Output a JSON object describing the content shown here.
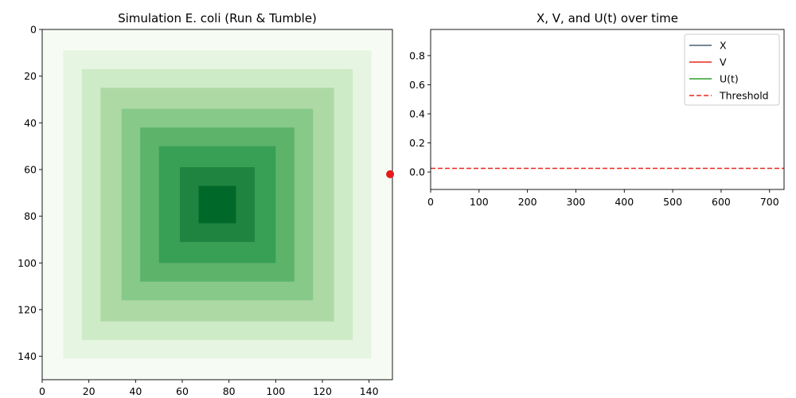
{
  "chart_data": [
    {
      "type": "heatmap",
      "title": "Simulation E. coli (Run & Tumble)",
      "xlim": [
        0,
        150
      ],
      "ylim": [
        150,
        0
      ],
      "x_ticks": [
        0,
        20,
        40,
        60,
        80,
        100,
        120,
        140
      ],
      "y_ticks": [
        0,
        20,
        40,
        60,
        80,
        100,
        120,
        140
      ],
      "colormap": "Greens",
      "grid": false,
      "field": {
        "center": [
          75,
          75
        ],
        "levels": [
          {
            "half_width": 75,
            "color": "#f6fcf4"
          },
          {
            "half_width": 66,
            "color": "#e6f5e1"
          },
          {
            "half_width": 58,
            "color": "#cdebc6"
          },
          {
            "half_width": 50,
            "color": "#add9a5"
          },
          {
            "half_width": 41,
            "color": "#87c988"
          },
          {
            "half_width": 33,
            "color": "#5db36a"
          },
          {
            "half_width": 25,
            "color": "#37a055"
          },
          {
            "half_width": 16,
            "color": "#1e8440"
          },
          {
            "half_width": 8,
            "color": "#00692a"
          }
        ]
      },
      "bacterium": {
        "x": 149,
        "y": 62,
        "color": "#e41a1c"
      }
    },
    {
      "type": "line",
      "title": "X, V, and U(t) over time",
      "xlim": [
        0,
        730
      ],
      "ylim": [
        -0.12,
        0.98
      ],
      "x_ticks": [
        0,
        100,
        200,
        300,
        400,
        500,
        600,
        700
      ],
      "y_ticks": [
        0.0,
        0.2,
        0.4,
        0.6,
        0.8
      ],
      "y_tick_labels": [
        "0.0",
        "0.2",
        "0.4",
        "0.6",
        "0.8"
      ],
      "legend_position": "upper right",
      "grid": false,
      "series": [
        {
          "name": "X",
          "color": "#4a6074",
          "style": "solid",
          "x": [],
          "y": []
        },
        {
          "name": "V",
          "color": "#e8281e",
          "style": "solid",
          "x": [],
          "y": []
        },
        {
          "name": "U(t)",
          "color": "#2ca02c",
          "style": "solid",
          "x": [],
          "y": []
        },
        {
          "name": "Threshold",
          "color": "#e8281e",
          "style": "dashed",
          "constant": 0.025
        }
      ]
    }
  ]
}
